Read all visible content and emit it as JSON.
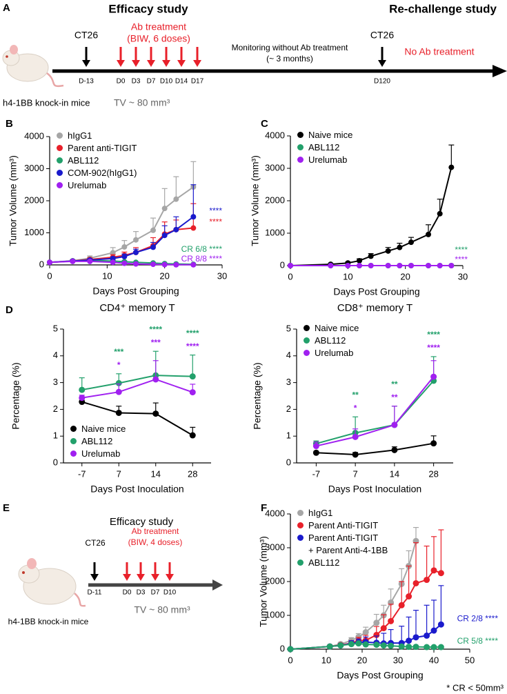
{
  "timeline_a": {
    "label": "A",
    "left_title": "Efficacy study",
    "right_title": "Re-challenge study",
    "challenge_1": "CT26",
    "treatment": [
      "Ab treatment",
      "(BIW, 6 doses)"
    ],
    "monitoring": [
      "Monitoring without Ab treatment",
      "(~ 3 months)"
    ],
    "challenge_2": "CT26",
    "no_treatment": "No Ab treatment",
    "days": [
      "D-13",
      "D0",
      "D3",
      "D7",
      "D10",
      "D14",
      "D17",
      "D120"
    ],
    "mouse": "h4-1BB knock-in mice",
    "tumor_volume": "TV ~ 80 mm³"
  },
  "timeline_e": {
    "label": "E",
    "title": "Efficacy study",
    "challenge": "CT26",
    "treatment": [
      "Ab treatment",
      "(BIW, 4 doses)"
    ],
    "days": [
      "D-11",
      "D0",
      "D3",
      "D7",
      "D10"
    ],
    "mouse": "h4-1BB knock-in mice",
    "tumor_volume": "TV ~ 80 mm³"
  },
  "footnote": "* CR < 50mm³",
  "chart_data": [
    {
      "type": "line",
      "panel": "B",
      "xlabel": "Days Post Grouping",
      "ylabel": "Tumor Volume (mm³)",
      "xlim": [
        0,
        30
      ],
      "xticks": [
        0,
        10,
        20,
        30
      ],
      "ylim": [
        0,
        4000
      ],
      "yticks": [
        0,
        1000,
        2000,
        3000,
        4000
      ],
      "legend": "upper left",
      "series": [
        {
          "name": "hIgG1",
          "color": "#a6a6a6",
          "x": [
            0,
            4,
            7,
            11,
            13,
            15,
            18,
            20,
            22,
            25
          ],
          "values": [
            80,
            130,
            210,
            380,
            560,
            780,
            1080,
            1760,
            2050,
            2430
          ],
          "errors": [
            20,
            40,
            70,
            160,
            200,
            260,
            380,
            620,
            700,
            790
          ]
        },
        {
          "name": "Parent anti-TIGIT",
          "color": "#e8202a",
          "x": [
            0,
            4,
            7,
            11,
            13,
            15,
            18,
            20,
            22,
            25
          ],
          "values": [
            80,
            120,
            170,
            240,
            300,
            390,
            600,
            960,
            1100,
            1150
          ],
          "errors": [
            20,
            30,
            50,
            80,
            100,
            150,
            250,
            380,
            300,
            760
          ],
          "note": "****"
        },
        {
          "name": "ABL112",
          "color": "#22a06b",
          "x": [
            0,
            4,
            7,
            11,
            13,
            15,
            18,
            20,
            22,
            25
          ],
          "values": [
            80,
            120,
            140,
            120,
            100,
            80,
            60,
            40,
            30,
            20
          ],
          "errors": [
            20,
            20,
            30,
            30,
            30,
            20,
            20,
            15,
            10,
            10
          ],
          "note": "CR 6/8 ****"
        },
        {
          "name": "COM-902(hIgG1)",
          "color": "#1a1acc",
          "x": [
            0,
            4,
            7,
            11,
            13,
            15,
            18,
            20,
            22,
            25
          ],
          "values": [
            80,
            120,
            150,
            200,
            260,
            390,
            550,
            920,
            1100,
            1500
          ],
          "errors": [
            20,
            30,
            40,
            50,
            80,
            100,
            150,
            300,
            400,
            1000
          ],
          "note": "****"
        },
        {
          "name": "Urelumab",
          "color": "#a020f0",
          "x": [
            0,
            4,
            7,
            11,
            13,
            15,
            18,
            20,
            22,
            25
          ],
          "values": [
            80,
            110,
            110,
            80,
            50,
            30,
            20,
            10,
            5,
            5
          ],
          "errors": [
            10,
            20,
            20,
            20,
            10,
            10,
            5,
            5,
            5,
            5
          ],
          "note": "CR 8/8 ****"
        }
      ]
    },
    {
      "type": "line",
      "panel": "C",
      "xlabel": "Days Post Grouping",
      "ylabel": "Tumor Volume (mm³)",
      "xlim": [
        0,
        30
      ],
      "xticks": [
        0,
        10,
        20,
        30
      ],
      "ylim": [
        0,
        4000
      ],
      "yticks": [
        0,
        1000,
        2000,
        3000,
        4000
      ],
      "legend": "upper left",
      "series": [
        {
          "name": "Naive mice",
          "color": "#000000",
          "x": [
            0,
            7,
            10,
            12,
            14,
            17,
            19,
            21,
            24,
            26,
            28
          ],
          "values": [
            0,
            40,
            80,
            150,
            290,
            450,
            560,
            720,
            960,
            1600,
            3030
          ],
          "errors": [
            0,
            20,
            30,
            60,
            80,
            110,
            130,
            150,
            300,
            450,
            690
          ]
        },
        {
          "name": "ABL112",
          "color": "#22a06b",
          "x": [
            0,
            7,
            10,
            12,
            14,
            17,
            19,
            21,
            24,
            26,
            28
          ],
          "values": [
            0,
            0,
            0,
            0,
            0,
            0,
            0,
            0,
            0,
            0,
            0
          ],
          "note": "****"
        },
        {
          "name": "Urelumab",
          "color": "#a020f0",
          "x": [
            0,
            7,
            10,
            12,
            14,
            17,
            19,
            21,
            24,
            26,
            28
          ],
          "values": [
            0,
            0,
            0,
            0,
            0,
            0,
            0,
            0,
            0,
            0,
            0
          ],
          "note": "****"
        }
      ]
    },
    {
      "type": "line",
      "panel": "D",
      "title": "CD4⁺ memory T",
      "xlabel": "Days Post Inoculation",
      "ylabel": "Percentage (%)",
      "categories": [
        "-7",
        "7",
        "14",
        "28"
      ],
      "ylim": [
        0,
        5
      ],
      "yticks": [
        0,
        1,
        2,
        3,
        4,
        5
      ],
      "legend": "lower left",
      "series": [
        {
          "name": "Naive mice",
          "color": "#000000",
          "values": [
            2.28,
            1.87,
            1.84,
            1.03
          ],
          "errors": [
            0.1,
            0.25,
            0.4,
            0.3
          ]
        },
        {
          "name": "ABL112",
          "color": "#22a06b",
          "values": [
            2.73,
            2.98,
            3.27,
            3.23
          ],
          "errors": [
            0.45,
            0.35,
            0.9,
            0.8
          ],
          "stars": [
            null,
            "***",
            "****",
            "****"
          ]
        },
        {
          "name": "Urelumab",
          "color": "#a020f0",
          "values": [
            2.43,
            2.65,
            3.12,
            2.64
          ],
          "errors": [
            0.1,
            0.3,
            0.7,
            0.3
          ],
          "stars": [
            null,
            "*",
            "***",
            "****"
          ]
        }
      ]
    },
    {
      "type": "line",
      "title": "CD8⁺ memory T",
      "xlabel": "Days Post Inoculation",
      "ylabel": "Percentage (%)",
      "categories": [
        "-7",
        "7",
        "14",
        "28"
      ],
      "ylim": [
        0,
        5
      ],
      "yticks": [
        0,
        1,
        2,
        3,
        4,
        5
      ],
      "legend": "upper left",
      "series": [
        {
          "name": "Naive mice",
          "color": "#000000",
          "values": [
            0.38,
            0.31,
            0.48,
            0.73
          ],
          "errors": [
            0.05,
            0.08,
            0.12,
            0.28
          ]
        },
        {
          "name": "ABL112",
          "color": "#22a06b",
          "values": [
            0.72,
            1.12,
            1.42,
            3.07
          ],
          "errors": [
            0.1,
            0.6,
            0.7,
            0.9
          ],
          "stars": [
            null,
            "**",
            "**",
            "****"
          ]
        },
        {
          "name": "Urelumab",
          "color": "#a020f0",
          "values": [
            0.63,
            0.97,
            1.42,
            3.22
          ],
          "errors": [
            0.15,
            0.3,
            0.7,
            0.6
          ],
          "stars": [
            null,
            "*",
            "**",
            "****"
          ]
        }
      ]
    },
    {
      "type": "line",
      "panel": "F",
      "xlabel": "Days Post Grouping",
      "ylabel": "Tumor Volume (mm³)",
      "xlim": [
        0,
        50
      ],
      "xticks": [
        0,
        10,
        20,
        30,
        40,
        50
      ],
      "ylim": [
        0,
        4000
      ],
      "yticks": [
        0,
        1000,
        2000,
        3000,
        4000
      ],
      "legend": "upper left",
      "series": [
        {
          "name": "hIgG1",
          "color": "#a6a6a6",
          "x": [
            0,
            11,
            14,
            17,
            19,
            21,
            24,
            26,
            28,
            31,
            33,
            35
          ],
          "values": [
            0,
            80,
            150,
            260,
            360,
            500,
            780,
            1000,
            1380,
            1930,
            2460,
            3200
          ],
          "errors": [
            0,
            30,
            50,
            80,
            100,
            150,
            250,
            300,
            400,
            450,
            450,
            400
          ]
        },
        {
          "name": "Parent Anti-TIGIT",
          "color": "#e8202a",
          "x": [
            0,
            11,
            14,
            17,
            19,
            21,
            24,
            26,
            28,
            31,
            33,
            35,
            38,
            40,
            42
          ],
          "values": [
            0,
            80,
            120,
            180,
            250,
            260,
            420,
            620,
            830,
            1300,
            1560,
            1950,
            2050,
            2330,
            2250
          ],
          "errors": [
            0,
            30,
            50,
            60,
            100,
            150,
            250,
            400,
            500,
            700,
            900,
            1200,
            1000,
            1000,
            1280
          ]
        },
        {
          "name": "Parent Anti-TIGIT\n+ Parent Anti-4-1BB",
          "color": "#1a1acc",
          "x": [
            0,
            11,
            14,
            17,
            19,
            21,
            24,
            26,
            28,
            31,
            33,
            35,
            38,
            40,
            42
          ],
          "values": [
            0,
            80,
            110,
            170,
            200,
            210,
            190,
            170,
            180,
            180,
            250,
            350,
            400,
            550,
            730
          ],
          "errors": [
            0,
            30,
            50,
            80,
            100,
            150,
            200,
            300,
            400,
            500,
            700,
            800,
            900,
            900,
            1150
          ],
          "note": "CR 2/8 ****"
        },
        {
          "name": "ABL112",
          "color": "#22a06b",
          "x": [
            0,
            11,
            14,
            17,
            19,
            21,
            24,
            26,
            28,
            31,
            33,
            35,
            38,
            40,
            42
          ],
          "values": [
            0,
            80,
            110,
            150,
            170,
            140,
            130,
            110,
            100,
            80,
            70,
            70,
            60,
            60,
            60
          ],
          "errors": [
            0,
            20,
            30,
            30,
            30,
            30,
            30,
            30,
            20,
            20,
            20,
            20,
            10,
            10,
            10
          ],
          "note": "CR 5/8 ****"
        }
      ]
    }
  ]
}
